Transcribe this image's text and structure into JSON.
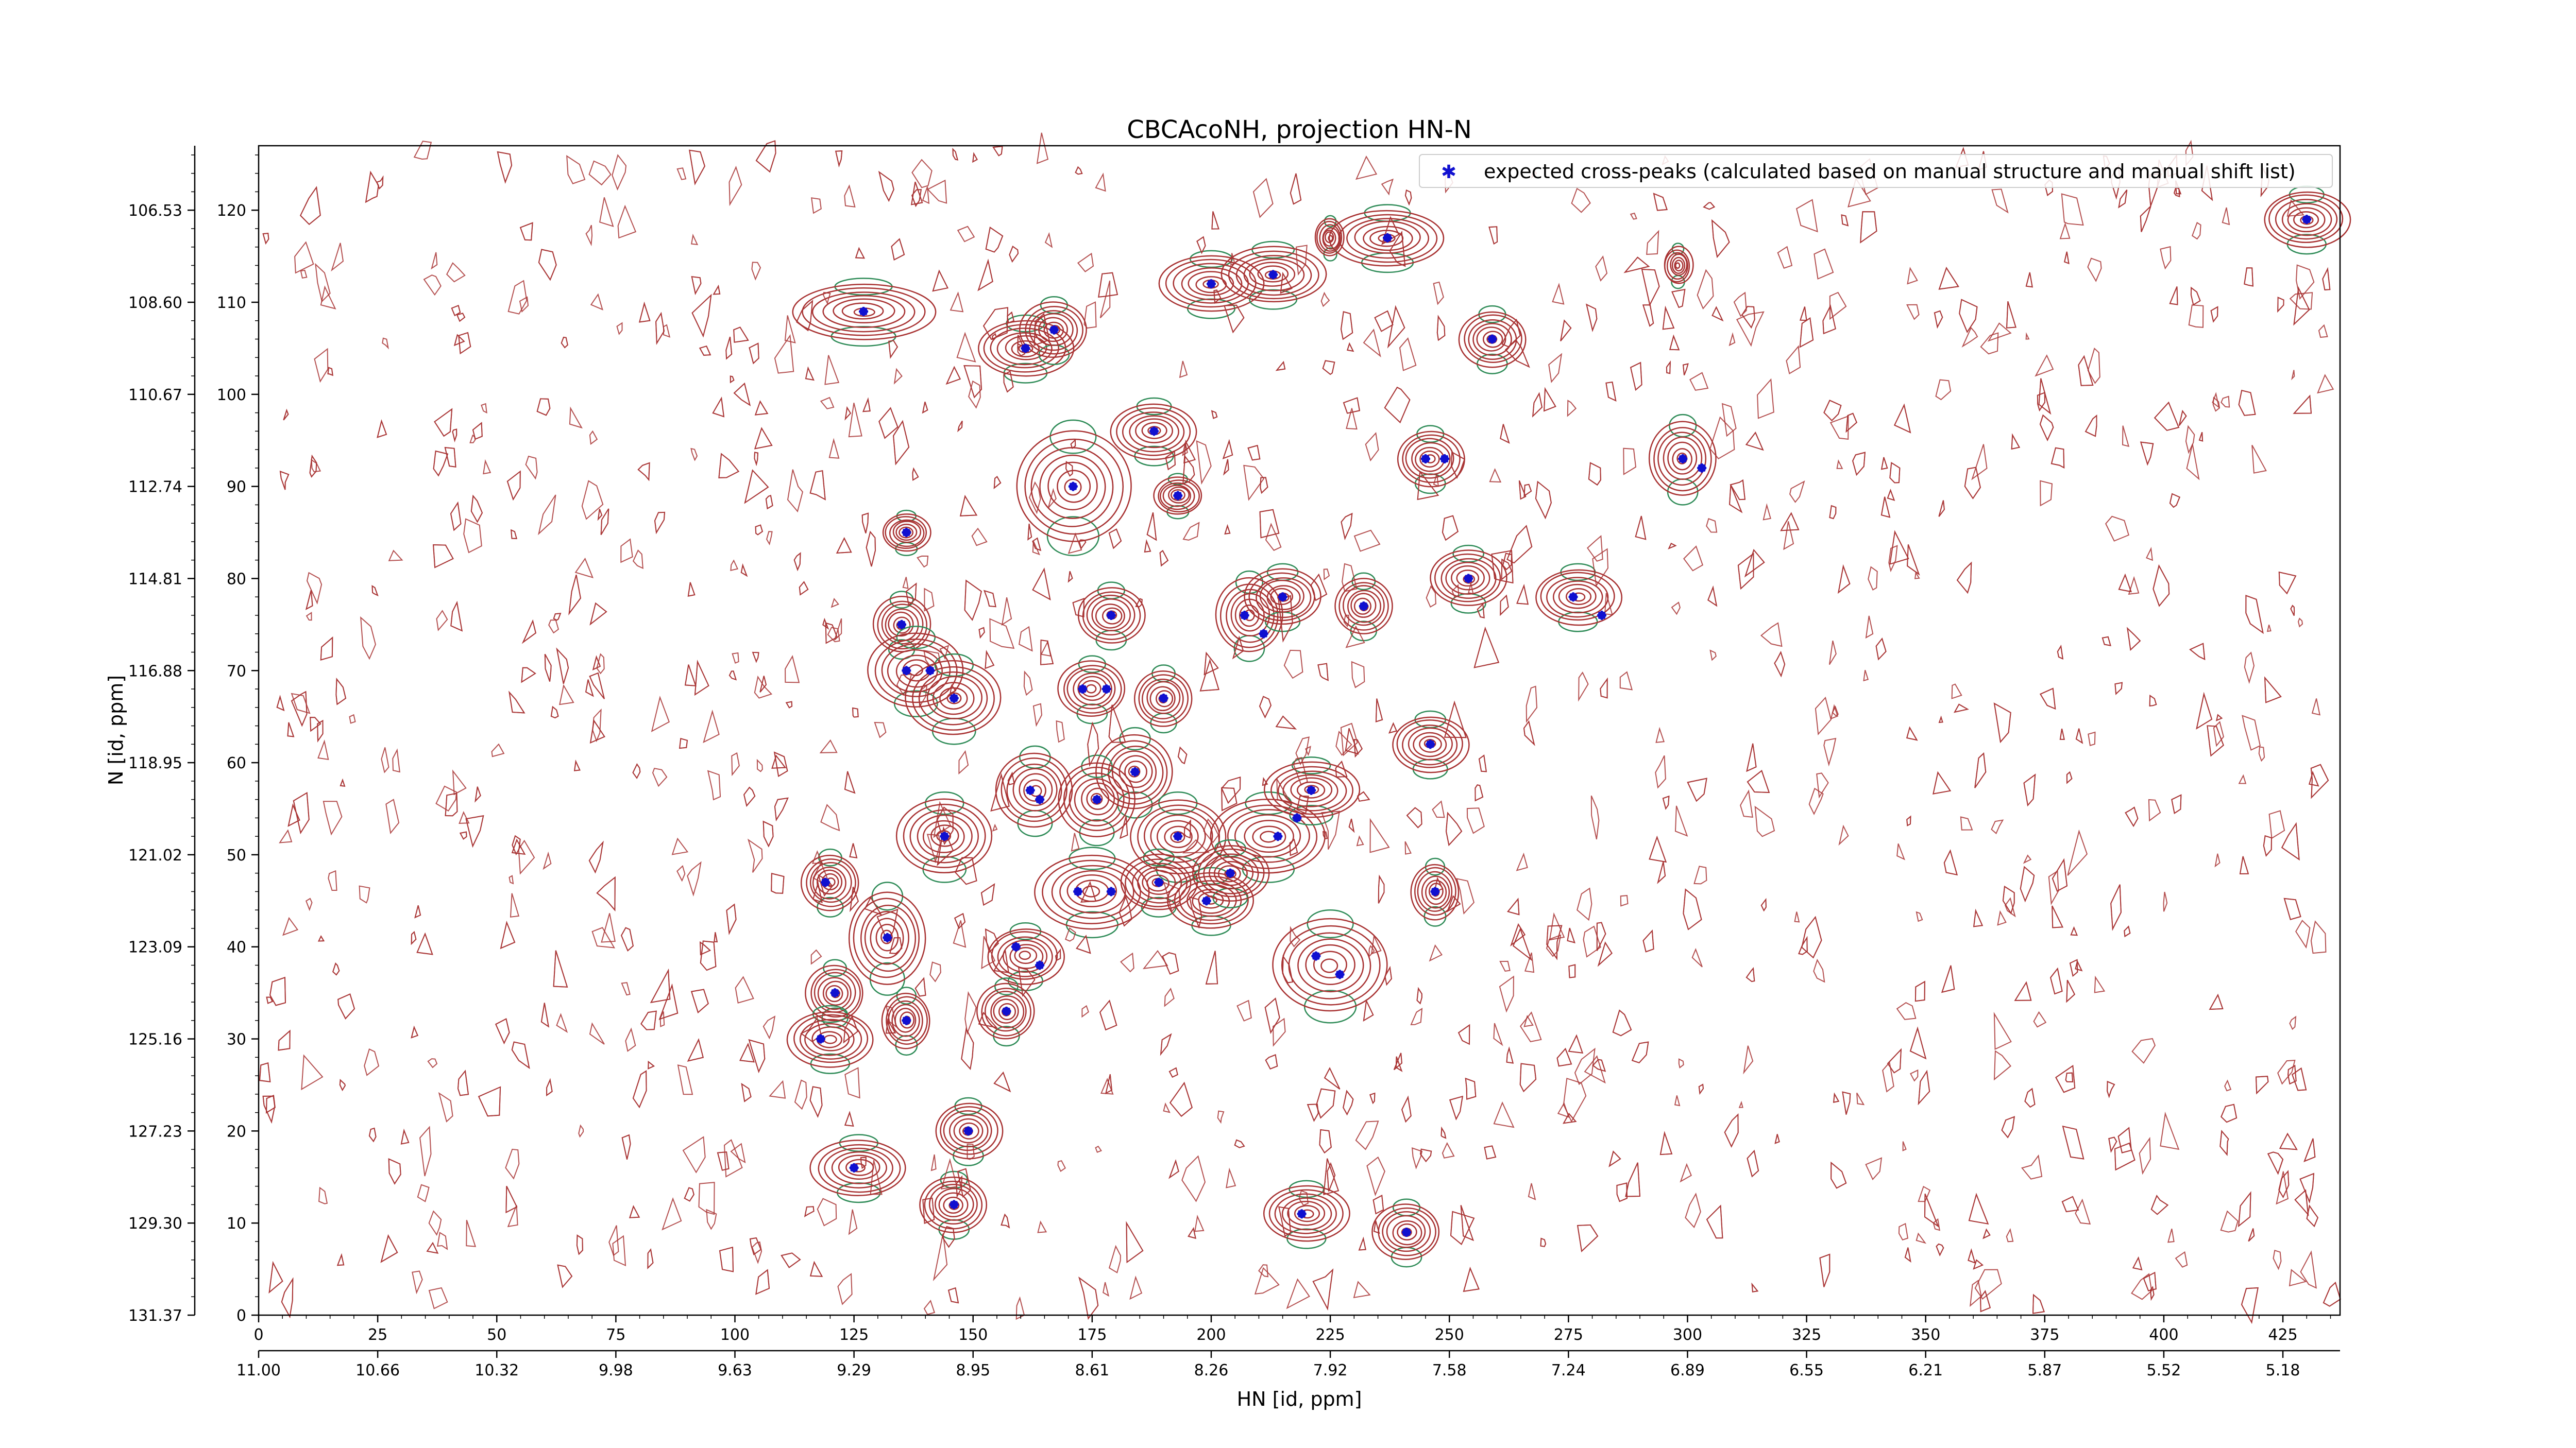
{
  "chart_data": {
    "type": "scatter",
    "title": "CBCAcoNH, projection HN-N",
    "xlabel": "HN [id, ppm]",
    "ylabel": "N [id, ppm]",
    "xlim": [
      0,
      437
    ],
    "ylim": [
      0,
      127
    ],
    "x_index_ticks": [
      "0",
      "25",
      "50",
      "75",
      "100",
      "125",
      "150",
      "175",
      "200",
      "225",
      "250",
      "275",
      "300",
      "325",
      "350",
      "375",
      "400",
      "425"
    ],
    "x_ppm_ticks": [
      "11.00",
      "10.66",
      "10.32",
      "9.98",
      "9.63",
      "9.29",
      "8.95",
      "8.61",
      "8.26",
      "7.92",
      "7.58",
      "7.24",
      "6.89",
      "6.55",
      "6.21",
      "5.87",
      "5.52",
      "5.18"
    ],
    "y_index_ticks": [
      "0",
      "10",
      "20",
      "30",
      "40",
      "50",
      "60",
      "70",
      "80",
      "90",
      "100",
      "110",
      "120"
    ],
    "y_ppm_ticks": [
      "131.37",
      "129.30",
      "127.23",
      "125.16",
      "123.09",
      "121.02",
      "118.95",
      "116.88",
      "114.81",
      "112.74",
      "110.67",
      "108.60",
      "106.53"
    ],
    "grid": false,
    "legend": {
      "placement": "top-right",
      "entries": [
        "expected cross-peaks (calculated based on manual structure and manual shift list)"
      ]
    },
    "colors": {
      "marker": "#1010d0",
      "contour_positive": "#a83232",
      "contour_negative": "#2e8b57"
    },
    "series": [
      {
        "name": "expected cross-peaks (calculated based on manual structure and manual shift list)",
        "points": [
          [
            127,
            109
          ],
          [
            161,
            105
          ],
          [
            167,
            107
          ],
          [
            200,
            112
          ],
          [
            213,
            113
          ],
          [
            237,
            117
          ],
          [
            430,
            119
          ],
          [
            259,
            106
          ],
          [
            188,
            96
          ],
          [
            171,
            90
          ],
          [
            193,
            89
          ],
          [
            136,
            85
          ],
          [
            245,
            93
          ],
          [
            249,
            93
          ],
          [
            299,
            93
          ],
          [
            303,
            92
          ],
          [
            135,
            75
          ],
          [
            136,
            70
          ],
          [
            141,
            70
          ],
          [
            146,
            67
          ],
          [
            179,
            76
          ],
          [
            178,
            68
          ],
          [
            173,
            68
          ],
          [
            190,
            67
          ],
          [
            207,
            76
          ],
          [
            215,
            78
          ],
          [
            211,
            74
          ],
          [
            232,
            77
          ],
          [
            254,
            80
          ],
          [
            276,
            78
          ],
          [
            282,
            76
          ],
          [
            184,
            59
          ],
          [
            162,
            57
          ],
          [
            164,
            56
          ],
          [
            176,
            56
          ],
          [
            144,
            52
          ],
          [
            193,
            52
          ],
          [
            214,
            52
          ],
          [
            218,
            54
          ],
          [
            221,
            57
          ],
          [
            246,
            62
          ],
          [
            119,
            47
          ],
          [
            172,
            46
          ],
          [
            179,
            46
          ],
          [
            189,
            47
          ],
          [
            199,
            45
          ],
          [
            204,
            48
          ],
          [
            247,
            46
          ],
          [
            132,
            41
          ],
          [
            159,
            40
          ],
          [
            164,
            38
          ],
          [
            121,
            35
          ],
          [
            136,
            32
          ],
          [
            157,
            33
          ],
          [
            118,
            30
          ],
          [
            222,
            39
          ],
          [
            227,
            37
          ],
          [
            149,
            20
          ],
          [
            125,
            16
          ],
          [
            146,
            12
          ],
          [
            219,
            11
          ],
          [
            241,
            9
          ]
        ]
      }
    ],
    "contour_peaks": [
      [
        127,
        109,
        15,
        3
      ],
      [
        161,
        105,
        10,
        3
      ],
      [
        167,
        107,
        7,
        3
      ],
      [
        200,
        112,
        11,
        3
      ],
      [
        213,
        113,
        11,
        3
      ],
      [
        237,
        117,
        12,
        3
      ],
      [
        430,
        119,
        9,
        3
      ],
      [
        259,
        106,
        7,
        3
      ],
      [
        188,
        96,
        9,
        3
      ],
      [
        171,
        90,
        12,
        6
      ],
      [
        193,
        89,
        5,
        2
      ],
      [
        136,
        85,
        5,
        2
      ],
      [
        246,
        93,
        7,
        3
      ],
      [
        299,
        93,
        7,
        4
      ],
      [
        135,
        75,
        6,
        3
      ],
      [
        138,
        70,
        10,
        4
      ],
      [
        146,
        67,
        10,
        4
      ],
      [
        179,
        76,
        7,
        3
      ],
      [
        175,
        68,
        7,
        3
      ],
      [
        190,
        67,
        6,
        3
      ],
      [
        208,
        76,
        7,
        4
      ],
      [
        215,
        78,
        8,
        3
      ],
      [
        232,
        77,
        6,
        3
      ],
      [
        254,
        80,
        8,
        3
      ],
      [
        277,
        78,
        9,
        3
      ],
      [
        184,
        59,
        8,
        4
      ],
      [
        163,
        57,
        8,
        4
      ],
      [
        176,
        56,
        8,
        4
      ],
      [
        144,
        52,
        10,
        4
      ],
      [
        193,
        52,
        10,
        4
      ],
      [
        212,
        52,
        12,
        4
      ],
      [
        221,
        57,
        10,
        3
      ],
      [
        246,
        62,
        8,
        3
      ],
      [
        120,
        47,
        6,
        3
      ],
      [
        175,
        46,
        12,
        4
      ],
      [
        189,
        47,
        8,
        3
      ],
      [
        200,
        45,
        9,
        3
      ],
      [
        204,
        48,
        8,
        3
      ],
      [
        247,
        46,
        5,
        3
      ],
      [
        132,
        41,
        8,
        5
      ],
      [
        161,
        39,
        8,
        3
      ],
      [
        121,
        35,
        6,
        3
      ],
      [
        136,
        32,
        5,
        3
      ],
      [
        157,
        33,
        6,
        3
      ],
      [
        120,
        30,
        9,
        3
      ],
      [
        225,
        38,
        12,
        5
      ],
      [
        149,
        20,
        7,
        3
      ],
      [
        126,
        16,
        10,
        3
      ],
      [
        146,
        12,
        7,
        3
      ],
      [
        220,
        11,
        9,
        3
      ],
      [
        241,
        9,
        7,
        3
      ],
      [
        225,
        117,
        3,
        2
      ],
      [
        298,
        114,
        3,
        2
      ]
    ]
  }
}
